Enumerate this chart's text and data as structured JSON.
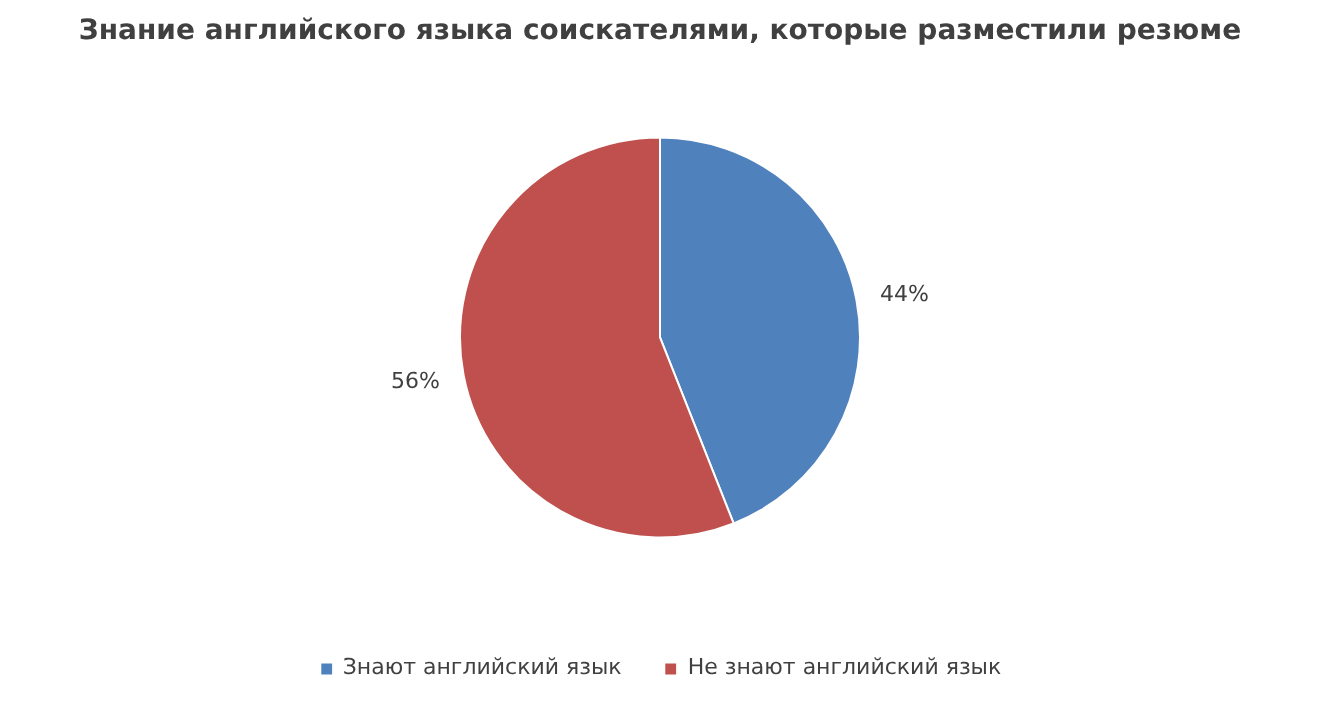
{
  "chart_data": {
    "type": "pie",
    "title": "Знание английского языка соискателями, которые разместили резюме",
    "categories": [
      "Знают английский язык",
      "Не знают английский язык"
    ],
    "values": [
      44,
      56
    ],
    "colors": [
      "#4f81bd",
      "#c0504d"
    ],
    "value_labels": [
      "44%",
      "56%"
    ],
    "legend": "bottom"
  }
}
